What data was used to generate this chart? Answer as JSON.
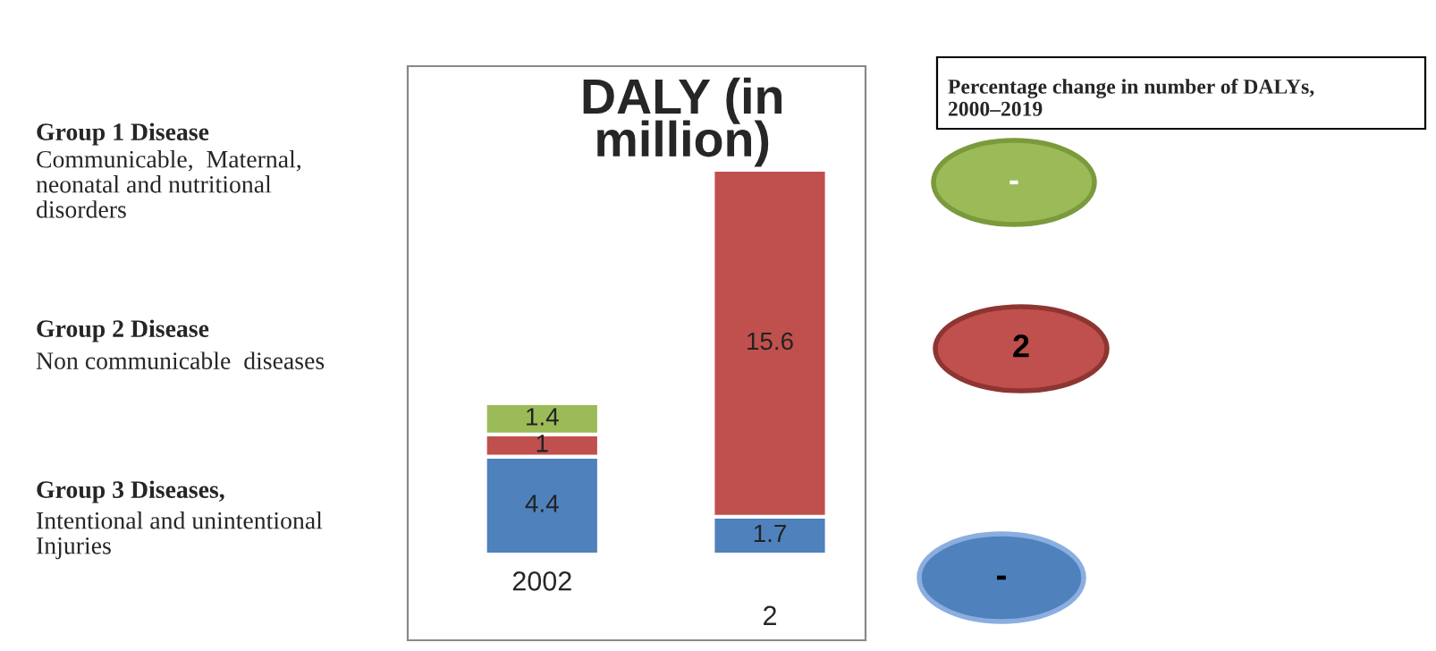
{
  "chart_data": {
    "type": "bar",
    "title": "DALY (in\nmillion)",
    "stacked": true,
    "data_labels": true,
    "categories": [
      "2002",
      "2"
    ],
    "series": [
      {
        "color": "#4f81bd",
        "values": [
          4.4,
          1.7
        ]
      },
      {
        "color": "#c0504d",
        "values": [
          1,
          15.6
        ]
      },
      {
        "color": "#9bbb59",
        "values": [
          1.4,
          null
        ]
      }
    ],
    "annotations": [
      "Group 1 Disease",
      "Communicable,  Maternal,\nneonatal and nutritional\ndisorders",
      "Group 2 Disease",
      "Non communicable  diseases",
      "Group 3 Diseases,",
      "Intentional and unintentional\nInjuries",
      "Percentage change in number of DALYs,\n2000–2019",
      "-",
      "2",
      "-"
    ],
    "legend": false
  }
}
